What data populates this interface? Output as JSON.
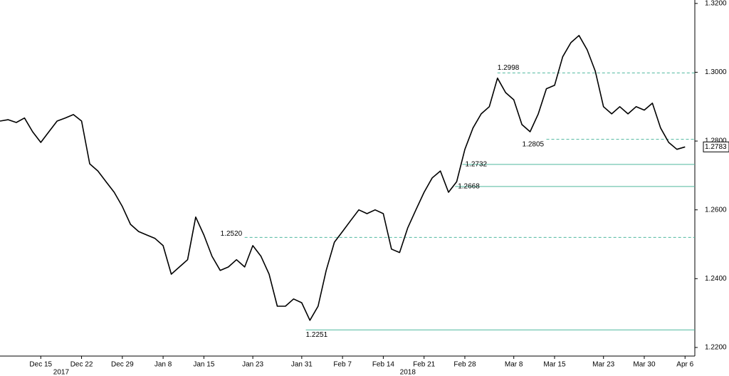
{
  "chart_data": {
    "type": "line",
    "x": [
      -5,
      -4,
      -3,
      -2,
      -1,
      0,
      1,
      2,
      3,
      4,
      5,
      6,
      7,
      8,
      9,
      10,
      11,
      12,
      13,
      14,
      15,
      16,
      17,
      18,
      19,
      20,
      21,
      22,
      23,
      24,
      25,
      26,
      27,
      28,
      29,
      30,
      31,
      32,
      33,
      34,
      35,
      36,
      37,
      38,
      39,
      40,
      41,
      42,
      43,
      44,
      45,
      46,
      47,
      48,
      49,
      50,
      51,
      52,
      53,
      54,
      55,
      56,
      57,
      58,
      59,
      60,
      61,
      62,
      63,
      64,
      65,
      66,
      67,
      68,
      69,
      70,
      71,
      72,
      73,
      74,
      75,
      76,
      77,
      78,
      79
    ],
    "series": [
      {
        "color": "#000000",
        "values": [
          1.2858,
          1.2862,
          1.2854,
          1.2867,
          1.2827,
          1.2796,
          1.2827,
          1.2858,
          1.2867,
          1.2877,
          1.2858,
          1.2734,
          1.2713,
          1.2682,
          1.2651,
          1.261,
          1.2558,
          1.2537,
          1.2527,
          1.2517,
          1.2496,
          1.2413,
          1.2434,
          1.2455,
          1.2579,
          1.2527,
          1.2465,
          1.2424,
          1.2434,
          1.2455,
          1.2434,
          1.2496,
          1.2465,
          1.2413,
          1.232,
          1.232,
          1.2341,
          1.233,
          1.2279,
          1.232,
          1.2424,
          1.2506,
          1.2537,
          1.2569,
          1.26,
          1.2589,
          1.26,
          1.2589,
          1.2486,
          1.2476,
          1.2548,
          1.26,
          1.2651,
          1.2693,
          1.2713,
          1.2651,
          1.2682,
          1.2776,
          1.2838,
          1.2879,
          1.29,
          1.2983,
          1.2941,
          1.292,
          1.2848,
          1.2827,
          1.2879,
          1.2952,
          1.2962,
          1.3045,
          1.3086,
          1.3107,
          1.3065,
          1.3003,
          1.29,
          1.2879,
          1.29,
          1.2879,
          1.29,
          1.289,
          1.291,
          1.2838,
          1.2796,
          1.2776,
          1.2783
        ]
      }
    ],
    "xlim": [
      -5,
      80.2
    ],
    "xticks": [
      {
        "value": 0,
        "label": "Dec 15"
      },
      {
        "value": 5,
        "label": "Dec 22"
      },
      {
        "value": 10,
        "label": "Dec 29"
      },
      {
        "value": 15,
        "label": "Jan 8"
      },
      {
        "value": 20,
        "label": "Jan 15"
      },
      {
        "value": 26,
        "label": "Jan 23"
      },
      {
        "value": 32,
        "label": "Jan 31"
      },
      {
        "value": 37,
        "label": "Feb 7"
      },
      {
        "value": 42,
        "label": "Feb 14"
      },
      {
        "value": 47,
        "label": "Feb 21"
      },
      {
        "value": 52,
        "label": "Feb 28"
      },
      {
        "value": 58,
        "label": "Mar 8"
      },
      {
        "value": 63,
        "label": "Mar 15"
      },
      {
        "value": 69,
        "label": "Mar 23"
      },
      {
        "value": 74,
        "label": "Mar 30"
      },
      {
        "value": 79,
        "label": "Apr 6"
      }
    ],
    "year_labels": [
      {
        "value": 2.5,
        "label": "2017"
      },
      {
        "value": 45,
        "label": "2018"
      }
    ],
    "ylim": [
      1.2175,
      1.321
    ],
    "yticks": [
      {
        "value": 1.22,
        "label": "1.2200"
      },
      {
        "value": 1.24,
        "label": "1.2400"
      },
      {
        "value": 1.26,
        "label": "1.2600"
      },
      {
        "value": 1.28,
        "label": "1.2800"
      },
      {
        "value": 1.3,
        "label": "1.3000"
      },
      {
        "value": 1.32,
        "label": "1.3200"
      }
    ],
    "levels": [
      {
        "value": 1.2998,
        "label": "1.2998",
        "style": "dashed",
        "x": 56,
        "color": "#4fb89e"
      },
      {
        "value": 1.2805,
        "label": "1.2805",
        "style": "dashed",
        "x": 62,
        "color": "#4fb89e"
      },
      {
        "value": 1.2732,
        "label": "1.2732",
        "style": "solid",
        "x": 51.7,
        "color": "#4fb89e"
      },
      {
        "value": 1.2668,
        "label": "1.2668",
        "style": "solid",
        "x": 50.8,
        "color": "#4fb89e"
      },
      {
        "value": 1.252,
        "label": "1.2520",
        "style": "dashed",
        "x": 25,
        "color": "#4fb89e"
      },
      {
        "value": 1.2251,
        "label": "1.2251",
        "style": "solid",
        "x": 32.5,
        "color": "#4fb89e"
      }
    ],
    "last_price": {
      "value": 1.2783,
      "label": "1.2783"
    }
  }
}
